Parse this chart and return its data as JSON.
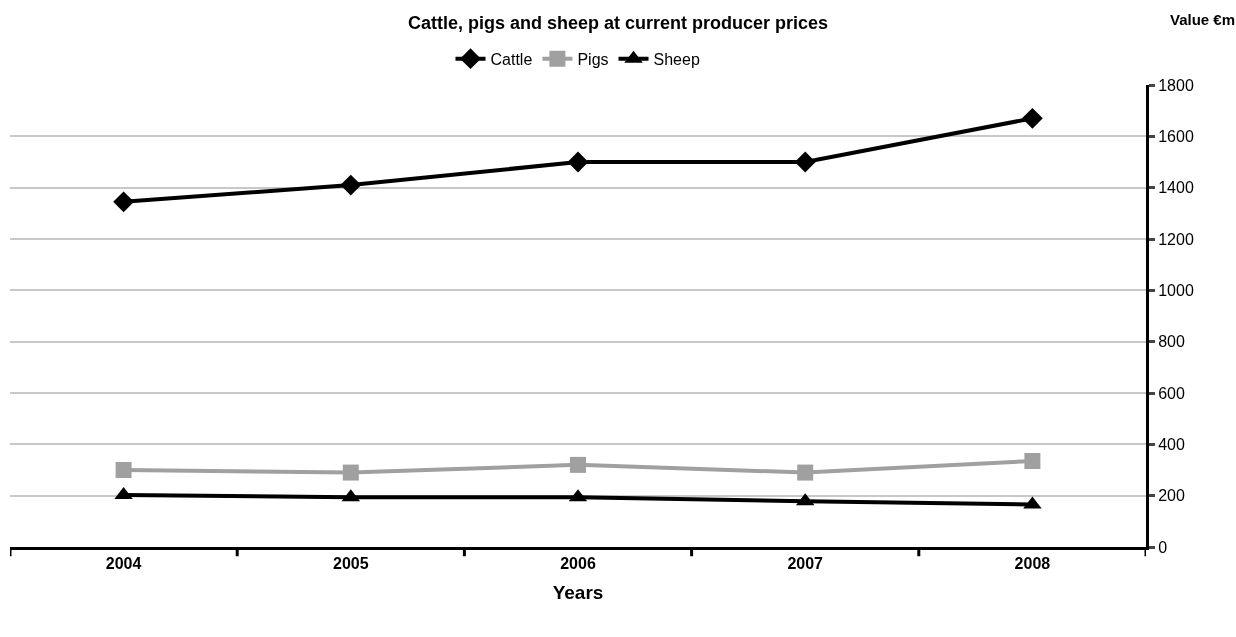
{
  "chart_data": {
    "type": "line",
    "title": "Cattle, pigs and sheep at current producer prices",
    "xlabel": "Years",
    "ylabel": "Value €m",
    "categories": [
      "2004",
      "2005",
      "2006",
      "2007",
      "2008"
    ],
    "series": [
      {
        "name": "Cattle",
        "color": "#000000",
        "marker": "diamond",
        "values": [
          1345,
          1410,
          1500,
          1500,
          1670
        ]
      },
      {
        "name": "Pigs",
        "color": "#a0a0a0",
        "marker": "square",
        "values": [
          300,
          290,
          320,
          290,
          335
        ]
      },
      {
        "name": "Sheep",
        "color": "#000000",
        "marker": "triangle",
        "values": [
          203,
          194,
          194,
          178,
          166
        ]
      }
    ],
    "ylim": [
      0,
      1800
    ],
    "yticks": [
      0,
      200,
      400,
      600,
      800,
      1000,
      1200,
      1400,
      1600,
      1800
    ],
    "grid": "y",
    "legend": "top"
  }
}
